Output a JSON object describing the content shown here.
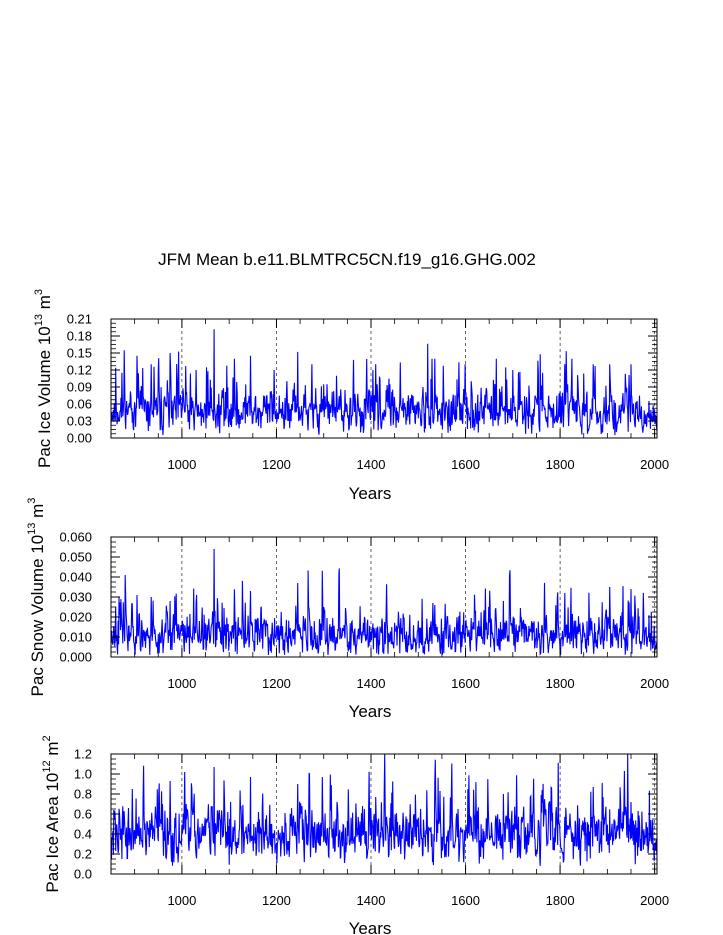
{
  "title": "JFM Mean b.e11.BLMTRC5CN.f19_g16.GHG.002",
  "line_color": "#0000ff",
  "chart_data": [
    {
      "type": "line",
      "name": "ice-volume",
      "ylabel_main": "Pac Ice Volume 10",
      "ylabel_sup": "13",
      "ylabel_unit": " m",
      "ylabel_unit_sup": "3",
      "xlabel": "Years",
      "xlim": [
        850,
        2005
      ],
      "ylim": [
        0,
        0.21
      ],
      "xticks": [
        1000,
        1200,
        1400,
        1600,
        1800,
        2000
      ],
      "yticks": [
        0.0,
        0.03,
        0.06,
        0.09,
        0.12,
        0.15,
        0.18,
        0.21
      ],
      "ytick_labels": [
        "0.00",
        "0.03",
        "0.06",
        "0.09",
        "0.12",
        "0.15",
        "0.18",
        "0.21"
      ],
      "grid_x": [
        1000,
        1200,
        1400,
        1600,
        1800,
        2000
      ],
      "series": {
        "start_year": 850,
        "end_year": 2005,
        "base": 0.045,
        "noise": 0.022,
        "min": 0.005,
        "seed": 11,
        "spikes": [
          [
            878,
            0.155
          ],
          [
            905,
            0.145
          ],
          [
            935,
            0.13
          ],
          [
            975,
            0.15
          ],
          [
            1030,
            0.12
          ],
          [
            1052,
            0.125
          ],
          [
            1068,
            0.192
          ],
          [
            1145,
            0.145
          ],
          [
            1195,
            0.12
          ],
          [
            1245,
            0.152
          ],
          [
            1300,
            0.095
          ],
          [
            1410,
            0.13
          ],
          [
            1535,
            0.14
          ],
          [
            1665,
            0.14
          ],
          [
            1700,
            0.12
          ],
          [
            1810,
            0.13
          ],
          [
            1870,
            0.13
          ],
          [
            1905,
            0.13
          ],
          [
            1950,
            0.13
          ],
          [
            2000,
            0.05
          ]
        ]
      }
    },
    {
      "type": "line",
      "name": "snow-volume",
      "ylabel_main": "Pac Snow Volume 10",
      "ylabel_sup": "13",
      "ylabel_unit": " m",
      "ylabel_unit_sup": "3",
      "xlabel": "Years",
      "xlim": [
        850,
        2005
      ],
      "ylim": [
        0,
        0.06
      ],
      "xticks": [
        1000,
        1200,
        1400,
        1600,
        1800,
        2000
      ],
      "yticks": [
        0.0,
        0.01,
        0.02,
        0.03,
        0.04,
        0.05,
        0.06
      ],
      "ytick_labels": [
        "0.000",
        "0.010",
        "0.020",
        "0.030",
        "0.040",
        "0.050",
        "0.060"
      ],
      "grid_x": [
        1000,
        1200,
        1400,
        1600,
        1800,
        2000
      ],
      "series": {
        "start_year": 850,
        "end_year": 2005,
        "base": 0.011,
        "noise": 0.0065,
        "min": 0.001,
        "seed": 23,
        "spikes": [
          [
            880,
            0.041
          ],
          [
            905,
            0.031
          ],
          [
            935,
            0.03
          ],
          [
            975,
            0.028
          ],
          [
            1030,
            0.027
          ],
          [
            1068,
            0.054
          ],
          [
            1145,
            0.033
          ],
          [
            1245,
            0.037
          ],
          [
            1300,
            0.025
          ],
          [
            1535,
            0.026
          ],
          [
            1680,
            0.028
          ],
          [
            1810,
            0.032
          ],
          [
            1905,
            0.035
          ],
          [
            1950,
            0.034
          ],
          [
            2000,
            0.01
          ]
        ]
      }
    },
    {
      "type": "line",
      "name": "ice-area",
      "ylabel_main": "Pac Ice Area 10",
      "ylabel_sup": "12",
      "ylabel_unit": " m",
      "ylabel_unit_sup": "2",
      "xlabel": "Years",
      "xlim": [
        850,
        2005
      ],
      "ylim": [
        0,
        1.2
      ],
      "xticks": [
        1000,
        1200,
        1400,
        1600,
        1800,
        2000
      ],
      "yticks": [
        0.0,
        0.2,
        0.4,
        0.6,
        0.8,
        1.0,
        1.2
      ],
      "ytick_labels": [
        "0.0",
        "0.2",
        "0.4",
        "0.6",
        "0.8",
        "1.0",
        "1.2"
      ],
      "grid_x": [
        1000,
        1200,
        1400,
        1600,
        1800,
        2000
      ],
      "series": {
        "start_year": 850,
        "end_year": 2005,
        "base": 0.4,
        "noise": 0.16,
        "min": 0.08,
        "seed": 37,
        "spikes": [
          [
            895,
            0.85
          ],
          [
            975,
            0.93
          ],
          [
            1068,
            1.07
          ],
          [
            1145,
            0.97
          ],
          [
            1245,
            0.9
          ],
          [
            1410,
            0.77
          ],
          [
            1535,
            0.92
          ],
          [
            1680,
            0.8
          ],
          [
            1760,
            0.79
          ],
          [
            1870,
            0.87
          ],
          [
            1950,
            0.72
          ],
          [
            2000,
            0.3
          ]
        ]
      }
    }
  ]
}
